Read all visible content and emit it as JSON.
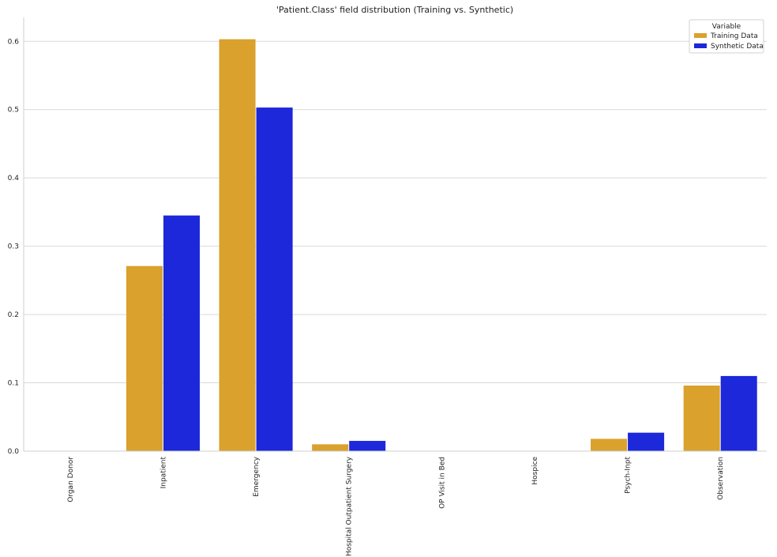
{
  "chart_data": {
    "type": "bar",
    "title": "'Patient.Class' field distribution (Training vs. Synthetic)",
    "xlabel": "",
    "ylabel": "",
    "categories": [
      "Organ Donor",
      "Inpatient",
      "Emergency",
      "Hospital Outpatient Surgery",
      "OP Visit in Bed",
      "Hospice",
      "Psych-Inpt",
      "Observation"
    ],
    "series": [
      {
        "name": "Training Data",
        "color": "#DAA12D",
        "values": [
          0.0,
          0.271,
          0.603,
          0.01,
          0.0,
          0.0,
          0.018,
          0.096
        ]
      },
      {
        "name": "Synthetic Data",
        "color": "#1C28DA",
        "values": [
          0.0,
          0.345,
          0.503,
          0.015,
          0.0,
          0.0,
          0.027,
          0.11
        ]
      }
    ],
    "ylim": [
      0,
      0.635
    ],
    "yticks": [
      "0.0",
      "0.1",
      "0.2",
      "0.3",
      "0.4",
      "0.5",
      "0.6"
    ],
    "grid": "horizontal",
    "legend": {
      "title": "Variable",
      "position": "top-right"
    }
  }
}
